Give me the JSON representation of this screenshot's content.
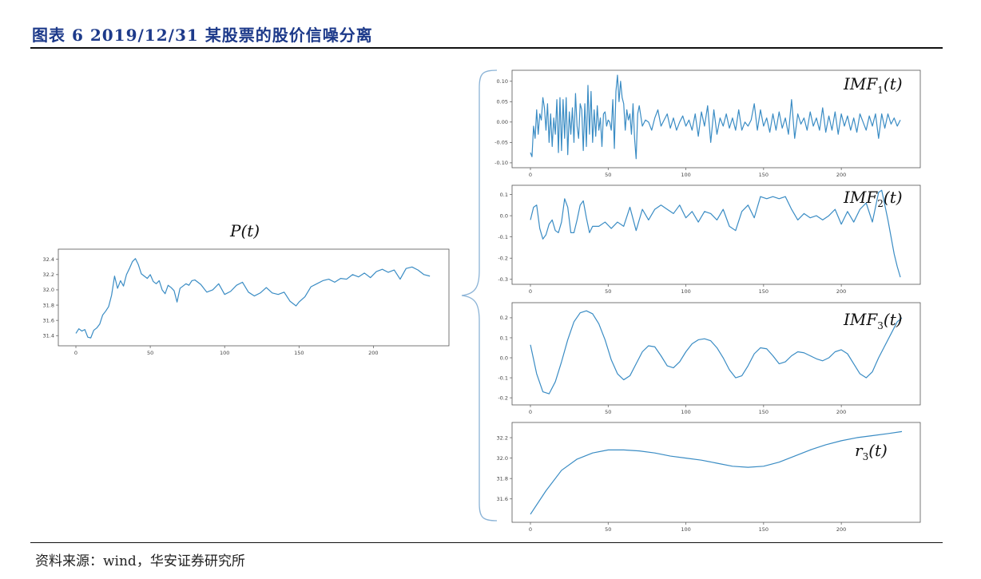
{
  "header": {
    "title": "图表 6 2019/12/31 某股票的股价信噪分离"
  },
  "footer": {
    "source": "资料来源：wind，华安证券研究所"
  },
  "colors": {
    "line": "#3a8cc4",
    "title": "#1d3a8a",
    "brace": "#8bb3d6"
  },
  "chart_data": [
    {
      "type": "line",
      "id": "pt",
      "label": {
        "base": "P",
        "sub": "",
        "arg": "(t)"
      },
      "xlim": [
        0,
        239
      ],
      "xticks": [
        0,
        50,
        100,
        150,
        200
      ],
      "ylim": [
        31.33,
        32.47
      ],
      "yticks": [
        31.4,
        31.6,
        31.8,
        32.0,
        32.2,
        32.4
      ],
      "ytick_labels": [
        "31.4",
        "31.6",
        "31.8",
        "32.0",
        "32.2",
        "32.4"
      ],
      "x": [
        0,
        2,
        4,
        6,
        8,
        10,
        12,
        14,
        16,
        18,
        20,
        22,
        24,
        26,
        28,
        30,
        32,
        34,
        36,
        38,
        40,
        42,
        44,
        46,
        48,
        50,
        52,
        54,
        56,
        58,
        60,
        62,
        64,
        66,
        68,
        70,
        72,
        74,
        76,
        78,
        80,
        84,
        88,
        92,
        96,
        100,
        104,
        108,
        112,
        116,
        120,
        124,
        128,
        132,
        136,
        140,
        144,
        148,
        150,
        154,
        158,
        162,
        166,
        170,
        174,
        178,
        182,
        186,
        190,
        194,
        198,
        202,
        206,
        210,
        214,
        218,
        222,
        226,
        230,
        234,
        238
      ],
      "y": [
        31.43,
        31.49,
        31.46,
        31.48,
        31.38,
        31.37,
        31.47,
        31.5,
        31.55,
        31.67,
        31.72,
        31.78,
        31.93,
        32.18,
        32.02,
        32.12,
        32.05,
        32.2,
        32.28,
        32.37,
        32.41,
        32.33,
        32.21,
        32.18,
        32.15,
        32.2,
        32.11,
        32.08,
        32.12,
        32.0,
        31.95,
        32.06,
        32.03,
        31.99,
        31.84,
        32.02,
        32.05,
        32.08,
        32.06,
        32.12,
        32.13,
        32.07,
        31.97,
        32.0,
        32.08,
        31.94,
        31.98,
        32.06,
        32.1,
        31.97,
        31.92,
        31.96,
        32.03,
        31.96,
        31.94,
        31.97,
        31.85,
        31.79,
        31.84,
        31.91,
        32.04,
        32.08,
        32.12,
        32.14,
        32.1,
        32.15,
        32.14,
        32.2,
        32.17,
        32.22,
        32.16,
        32.24,
        32.27,
        32.23,
        32.26,
        32.14,
        32.28,
        32.3,
        32.26,
        32.2,
        32.18
      ]
    },
    {
      "type": "line",
      "id": "imf1",
      "label": {
        "base": "IMF",
        "sub": "1",
        "arg": "(t)"
      },
      "xlim": [
        0,
        239
      ],
      "xticks": [
        0,
        50,
        100,
        150,
        200
      ],
      "ylim": [
        -0.1,
        0.115
      ],
      "yticks": [
        -0.1,
        -0.05,
        0.0,
        0.05,
        0.1
      ],
      "ytick_labels": [
        "-0.10",
        "-0.05",
        "0.00",
        "0.05",
        "0.10"
      ],
      "x": [
        0,
        1,
        2,
        3,
        4,
        5,
        6,
        7,
        8,
        9,
        10,
        11,
        12,
        13,
        14,
        15,
        16,
        17,
        18,
        19,
        20,
        21,
        22,
        23,
        24,
        25,
        26,
        27,
        28,
        29,
        30,
        31,
        32,
        33,
        34,
        35,
        36,
        37,
        38,
        39,
        40,
        41,
        42,
        43,
        44,
        45,
        46,
        47,
        48,
        49,
        50,
        51,
        52,
        53,
        54,
        55,
        56,
        57,
        58,
        59,
        60,
        61,
        62,
        63,
        64,
        65,
        66,
        67,
        68,
        69,
        70,
        72,
        74,
        76,
        78,
        80,
        82,
        84,
        86,
        88,
        90,
        92,
        94,
        96,
        98,
        100,
        102,
        104,
        106,
        108,
        110,
        112,
        114,
        116,
        118,
        120,
        122,
        124,
        126,
        128,
        130,
        132,
        134,
        136,
        138,
        140,
        142,
        144,
        146,
        148,
        150,
        152,
        154,
        156,
        158,
        160,
        162,
        164,
        166,
        168,
        170,
        172,
        174,
        176,
        178,
        180,
        182,
        184,
        186,
        188,
        190,
        192,
        194,
        196,
        198,
        200,
        202,
        204,
        206,
        208,
        210,
        212,
        214,
        216,
        218,
        220,
        222,
        224,
        226,
        228,
        230,
        232,
        234,
        236,
        238
      ],
      "y": [
        -0.075,
        -0.085,
        -0.01,
        -0.04,
        0.03,
        -0.03,
        0.02,
        0.005,
        0.06,
        0.035,
        -0.02,
        0.045,
        -0.05,
        0.02,
        -0.06,
        0.01,
        -0.03,
        0.055,
        -0.075,
        0.06,
        -0.07,
        0.055,
        -0.04,
        0.06,
        -0.08,
        0.025,
        -0.03,
        0.035,
        -0.05,
        0.07,
        -0.01,
        -0.04,
        0.045,
        0.03,
        -0.07,
        0.045,
        -0.06,
        0.09,
        -0.03,
        0.075,
        -0.05,
        0.03,
        -0.035,
        0.04,
        -0.02,
        0.01,
        -0.06,
        0.02,
        0.025,
        -0.01,
        0.005,
        0.0,
        -0.02,
        0.055,
        -0.065,
        0.075,
        0.115,
        0.05,
        0.1,
        0.06,
        0.045,
        -0.02,
        0.03,
        0.005,
        0.02,
        -0.03,
        0.045,
        -0.04,
        -0.09,
        0.02,
        0.04,
        -0.01,
        0.005,
        0.0,
        -0.02,
        0.01,
        0.03,
        -0.01,
        0.005,
        0.02,
        -0.015,
        0.01,
        -0.02,
        0.0,
        0.015,
        -0.01,
        0.005,
        -0.02,
        0.02,
        -0.035,
        0.025,
        -0.01,
        0.04,
        -0.05,
        0.03,
        -0.03,
        0.01,
        -0.01,
        0.02,
        -0.015,
        0.01,
        -0.02,
        0.03,
        -0.02,
        0.0,
        -0.01,
        0.005,
        0.045,
        -0.02,
        0.03,
        -0.01,
        0.01,
        -0.025,
        0.02,
        -0.02,
        0.025,
        -0.015,
        0.01,
        -0.03,
        0.055,
        -0.04,
        0.02,
        -0.005,
        0.01,
        -0.02,
        0.025,
        -0.01,
        0.01,
        -0.02,
        0.035,
        -0.025,
        0.015,
        -0.02,
        0.025,
        -0.03,
        0.02,
        -0.01,
        0.015,
        -0.02,
        0.01,
        -0.025,
        0.02,
        0.0,
        -0.02,
        0.015,
        -0.01,
        0.02,
        -0.04,
        0.02,
        -0.015,
        0.02,
        -0.005,
        0.01,
        -0.01,
        0.005
      ]
    },
    {
      "type": "line",
      "id": "imf2",
      "label": {
        "base": "IMF",
        "sub": "2",
        "arg": "(t)"
      },
      "xlim": [
        0,
        239
      ],
      "xticks": [
        0,
        50,
        100,
        150,
        200
      ],
      "ylim": [
        -0.3,
        0.12
      ],
      "yticks": [
        -0.3,
        -0.2,
        -0.1,
        0.0,
        0.1
      ],
      "ytick_labels": [
        "-0.3",
        "-0.2",
        "-0.1",
        "0.0",
        "0.1"
      ],
      "x": [
        0,
        2,
        4,
        6,
        8,
        10,
        12,
        14,
        16,
        18,
        20,
        22,
        24,
        26,
        28,
        30,
        32,
        34,
        36,
        38,
        40,
        44,
        48,
        52,
        56,
        60,
        64,
        68,
        72,
        76,
        80,
        84,
        88,
        92,
        96,
        100,
        104,
        108,
        112,
        116,
        120,
        124,
        128,
        132,
        136,
        140,
        144,
        148,
        152,
        156,
        160,
        164,
        168,
        172,
        176,
        180,
        184,
        188,
        192,
        196,
        200,
        204,
        208,
        212,
        216,
        220,
        224,
        226,
        228,
        230,
        232,
        234,
        236,
        238
      ],
      "y": [
        -0.02,
        0.04,
        0.05,
        -0.06,
        -0.11,
        -0.09,
        -0.04,
        -0.02,
        -0.07,
        -0.08,
        -0.03,
        0.08,
        0.04,
        -0.08,
        -0.08,
        -0.02,
        0.05,
        0.07,
        -0.01,
        -0.08,
        -0.05,
        -0.05,
        -0.03,
        -0.06,
        -0.03,
        -0.05,
        0.04,
        -0.07,
        0.03,
        -0.02,
        0.03,
        0.05,
        0.03,
        0.01,
        0.05,
        -0.01,
        0.02,
        -0.03,
        0.02,
        0.01,
        -0.02,
        0.03,
        -0.05,
        -0.07,
        0.02,
        0.05,
        -0.01,
        0.09,
        0.08,
        0.09,
        0.08,
        0.09,
        0.03,
        -0.02,
        0.01,
        -0.01,
        0.0,
        -0.02,
        0.0,
        0.03,
        -0.04,
        0.02,
        -0.03,
        0.03,
        0.06,
        -0.03,
        0.11,
        0.12,
        0.05,
        -0.02,
        -0.1,
        -0.18,
        -0.24,
        -0.29
      ]
    },
    {
      "type": "line",
      "id": "imf3",
      "label": {
        "base": "IMF",
        "sub": "3",
        "arg": "(t)"
      },
      "xlim": [
        0,
        239
      ],
      "xticks": [
        0,
        50,
        100,
        150,
        200
      ],
      "ylim": [
        -0.21,
        0.25
      ],
      "yticks": [
        -0.2,
        -0.1,
        0.0,
        0.1,
        0.2
      ],
      "ytick_labels": [
        "-0.2",
        "-0.1",
        "0.0",
        "0.1",
        "0.2"
      ],
      "x": [
        0,
        4,
        8,
        12,
        16,
        20,
        24,
        28,
        32,
        36,
        40,
        44,
        48,
        52,
        56,
        60,
        64,
        68,
        72,
        76,
        80,
        84,
        88,
        92,
        96,
        100,
        104,
        108,
        112,
        116,
        120,
        124,
        128,
        132,
        136,
        140,
        144,
        148,
        152,
        156,
        160,
        164,
        168,
        172,
        176,
        180,
        184,
        188,
        192,
        196,
        200,
        204,
        208,
        212,
        216,
        220,
        224,
        228,
        232,
        236,
        239
      ],
      "y": [
        0.065,
        -0.08,
        -0.17,
        -0.18,
        -0.12,
        -0.02,
        0.09,
        0.18,
        0.225,
        0.235,
        0.22,
        0.17,
        0.09,
        -0.01,
        -0.08,
        -0.11,
        -0.09,
        -0.03,
        0.03,
        0.06,
        0.055,
        0.01,
        -0.04,
        -0.05,
        -0.02,
        0.03,
        0.07,
        0.09,
        0.095,
        0.085,
        0.05,
        0.0,
        -0.06,
        -0.1,
        -0.09,
        -0.04,
        0.02,
        0.05,
        0.045,
        0.01,
        -0.03,
        -0.02,
        0.01,
        0.03,
        0.025,
        0.01,
        -0.005,
        -0.015,
        0.0,
        0.03,
        0.04,
        0.02,
        -0.03,
        -0.08,
        -0.1,
        -0.07,
        0.0,
        0.06,
        0.12,
        0.18,
        0.2
      ]
    },
    {
      "type": "line",
      "id": "r3",
      "label": {
        "base": "r",
        "sub": "3",
        "arg": "(t)"
      },
      "xlim": [
        0,
        239
      ],
      "xticks": [
        0,
        50,
        100,
        150,
        200
      ],
      "ylim": [
        31.42,
        32.3
      ],
      "yticks": [
        31.6,
        31.8,
        32.0,
        32.2
      ],
      "ytick_labels": [
        "31.6",
        "31.8",
        "32.0",
        "32.2"
      ],
      "x": [
        0,
        10,
        20,
        30,
        40,
        50,
        60,
        70,
        80,
        90,
        100,
        110,
        120,
        130,
        140,
        150,
        160,
        170,
        180,
        190,
        200,
        210,
        220,
        230,
        239
      ],
      "y": [
        31.45,
        31.68,
        31.88,
        31.99,
        32.05,
        32.08,
        32.08,
        32.07,
        32.05,
        32.02,
        32.0,
        31.98,
        31.95,
        31.92,
        31.91,
        31.92,
        31.96,
        32.02,
        32.08,
        32.13,
        32.17,
        32.2,
        32.22,
        32.24,
        32.26
      ]
    }
  ]
}
